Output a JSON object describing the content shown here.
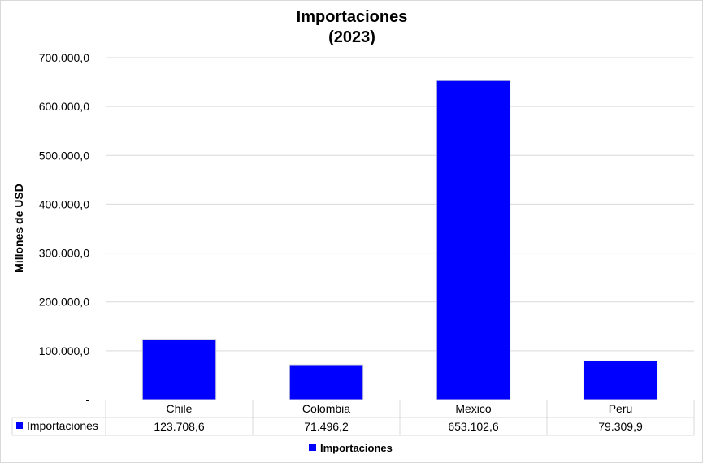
{
  "chart_data": {
    "type": "bar",
    "title": [
      "Importaciones",
      "(2023)"
    ],
    "ylabel": "Millones de USD",
    "xlabel": "",
    "ylim": [
      0,
      700000
    ],
    "yticks": [
      0,
      100000,
      200000,
      300000,
      400000,
      500000,
      600000,
      700000
    ],
    "ytick_labels": [
      "-",
      "100.000,0",
      "200.000,0",
      "300.000,0",
      "400.000,0",
      "500.000,0",
      "600.000,0",
      "700.000,0"
    ],
    "grid": true,
    "legend_position": "bottom",
    "categories": [
      "Chile",
      "Colombia",
      "Mexico",
      "Peru"
    ],
    "series": [
      {
        "name": "Importaciones",
        "values": [
          123708.6,
          71496.2,
          653102.6,
          79309.9
        ],
        "value_labels": [
          "123.708,6",
          "71.496,2",
          "653.102,6",
          "79.309,9"
        ],
        "color": "#0000ff"
      }
    ]
  }
}
